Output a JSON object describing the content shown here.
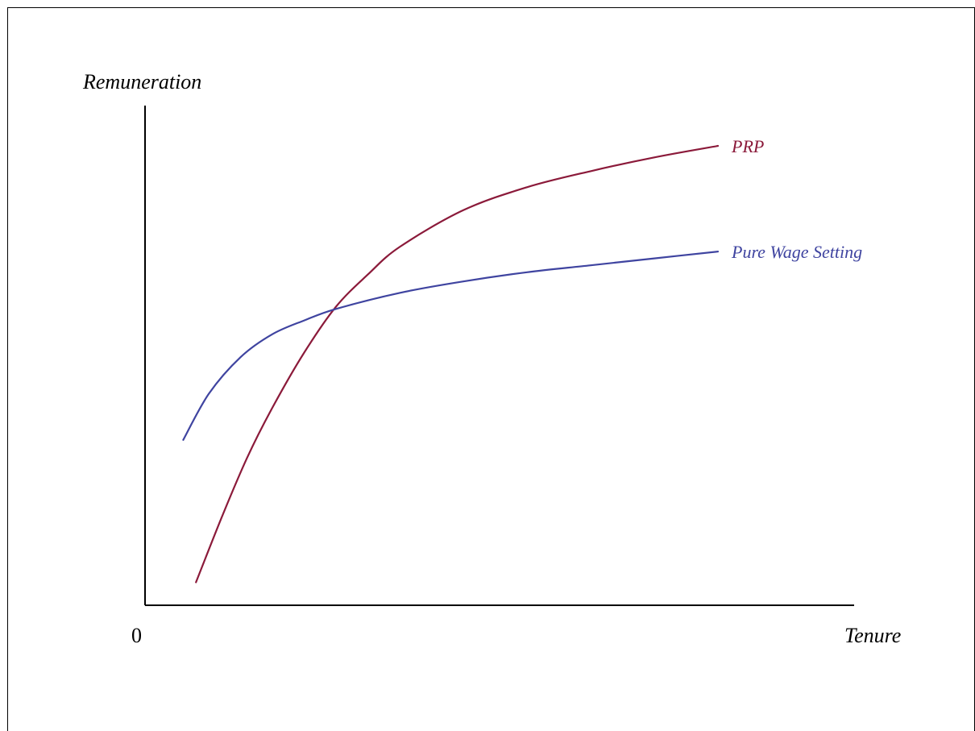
{
  "chart_data": {
    "type": "line",
    "title": "",
    "ylabel": "Remuneration",
    "xlabel": "Tenure",
    "origin_label": "0",
    "grid": false,
    "legend": "none (series labelled at line ends)",
    "xlim": [
      0,
      10
    ],
    "ylim": [
      0,
      10
    ],
    "series": [
      {
        "name": "PRP",
        "color": "#8b1a3a",
        "x": [
          0.8,
          1.2,
          1.6,
          2.0,
          2.5,
          3.0,
          3.5,
          4.0,
          5.0,
          6.0,
          7.0,
          8.0,
          9.0
        ],
        "y": [
          0.5,
          1.9,
          3.2,
          4.3,
          5.5,
          6.5,
          7.2,
          7.8,
          8.6,
          9.1,
          9.45,
          9.75,
          10.0
        ]
      },
      {
        "name": "Pure Wage Setting",
        "color": "#3f44a0",
        "x": [
          0.6,
          1.0,
          1.5,
          2.0,
          2.5,
          3.0,
          4.0,
          5.0,
          6.0,
          7.0,
          8.0,
          9.0
        ],
        "y": [
          3.6,
          4.6,
          5.4,
          5.9,
          6.2,
          6.45,
          6.8,
          7.05,
          7.25,
          7.4,
          7.55,
          7.7
        ]
      }
    ]
  }
}
